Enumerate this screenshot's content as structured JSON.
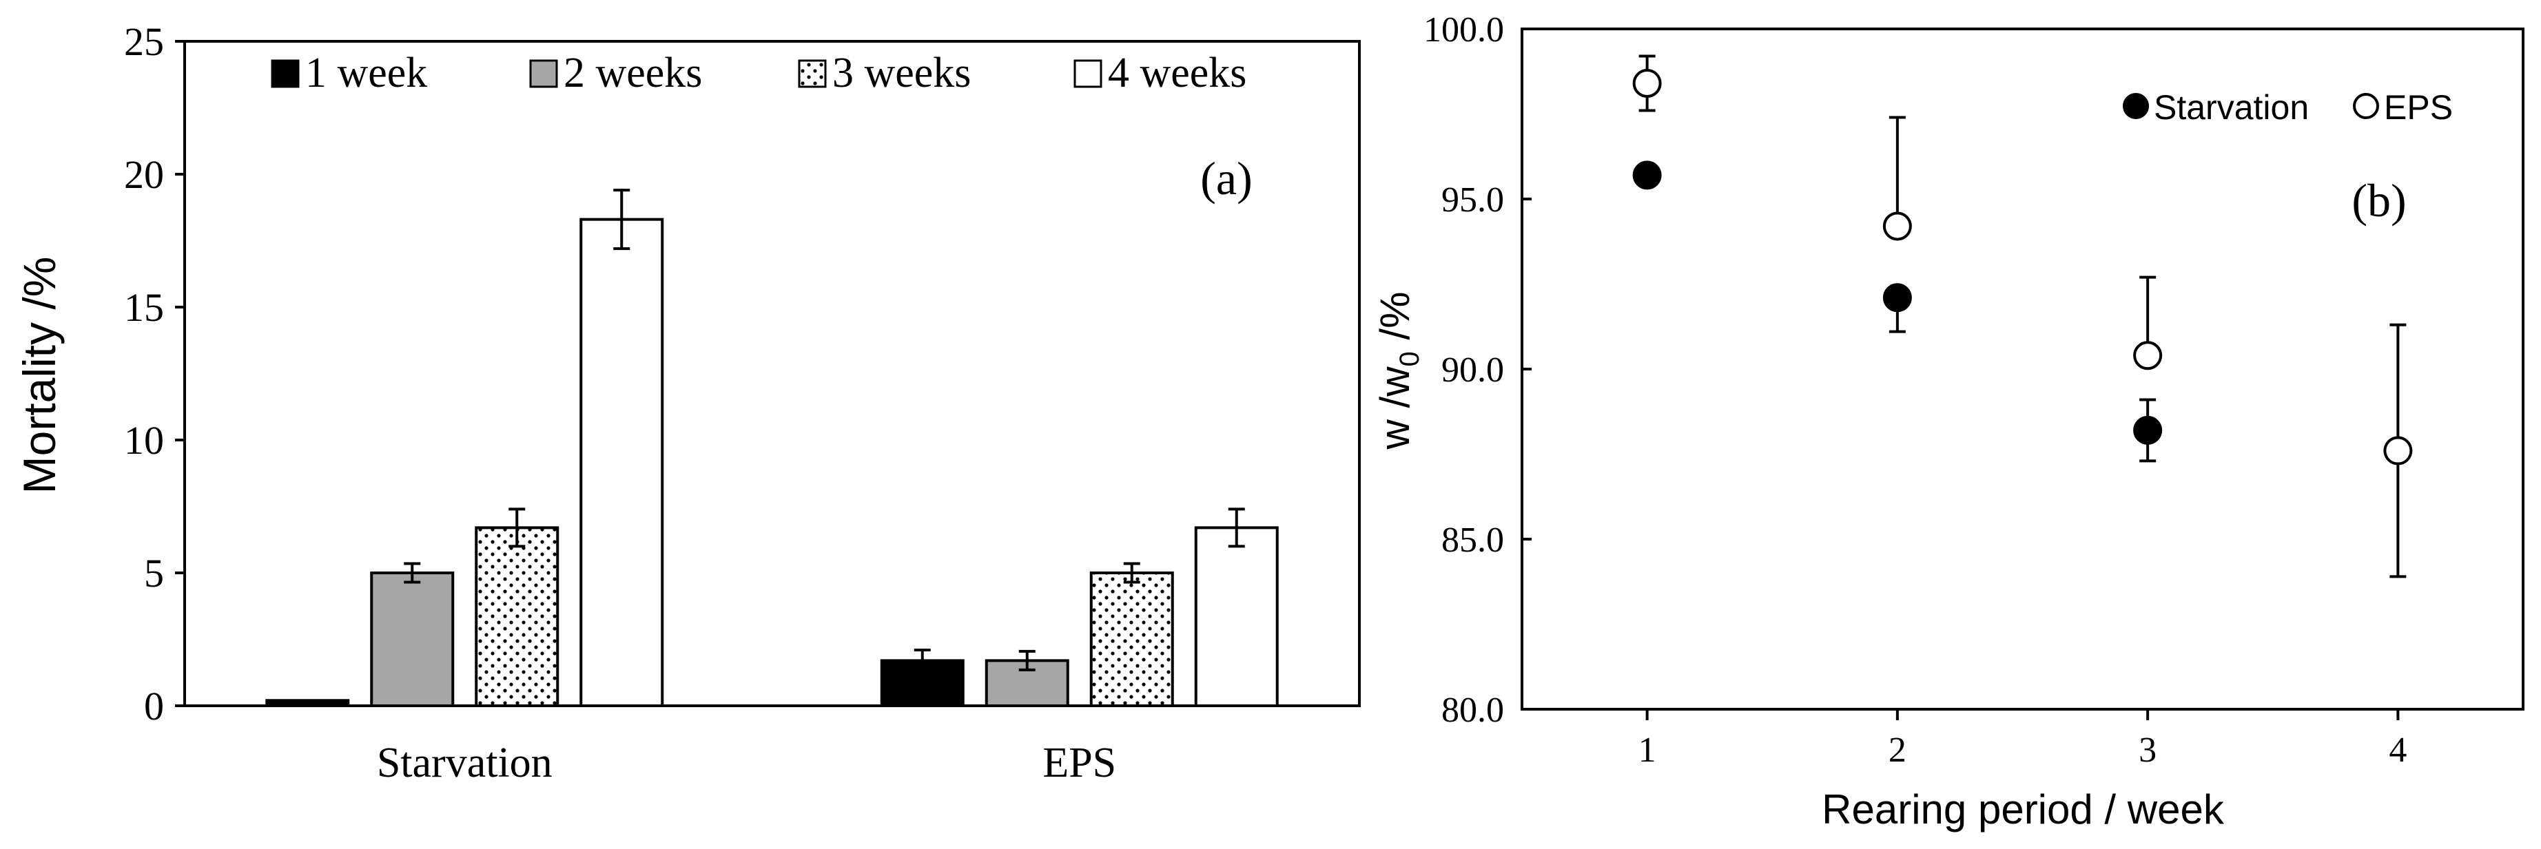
{
  "chart_data": [
    {
      "type": "bar",
      "panel_label": "(a)",
      "title": "",
      "xlabel": "",
      "ylabel": "Mortality /%",
      "ylim": [
        0,
        25
      ],
      "yticks": [
        0,
        5,
        10,
        15,
        20,
        25
      ],
      "categories": [
        "Starvation",
        "EPS"
      ],
      "series": [
        {
          "name": "1 week",
          "values": [
            0.2,
            1.7
          ],
          "errors": [
            0,
            0.4
          ],
          "fill": "#000000",
          "pattern": "solid"
        },
        {
          "name": "2 weeks",
          "values": [
            5.0,
            1.7
          ],
          "errors": [
            0.35,
            0.35
          ],
          "fill": "#a6a6a6",
          "pattern": "solid"
        },
        {
          "name": "3 weeks",
          "values": [
            6.7,
            5.0
          ],
          "errors": [
            0.7,
            0.35
          ],
          "fill": "#ffffff",
          "pattern": "dots"
        },
        {
          "name": "4 weeks",
          "values": [
            18.3,
            6.7
          ],
          "errors": [
            1.1,
            0.7
          ],
          "fill": "#ffffff",
          "pattern": "none"
        }
      ],
      "legend_position": "top",
      "grid": false
    },
    {
      "type": "scatter",
      "panel_label": "(b)",
      "title": "",
      "xlabel": "Rearing period / week",
      "ylabel_main": "w /w",
      "ylabel_sub": "0",
      "ylabel_tail": " /%",
      "xlim": [
        0.5,
        4.5
      ],
      "xticks": [
        "1",
        "2",
        "3",
        "4"
      ],
      "ylim": [
        80,
        100
      ],
      "yticks": [
        "80.0",
        "85.0",
        "90.0",
        "95.0",
        "100.0"
      ],
      "series": [
        {
          "name": "Starvation",
          "marker": "filled-circle",
          "x": [
            1,
            2,
            3
          ],
          "y": [
            95.7,
            92.1,
            88.2
          ],
          "err_up": [
            0,
            0,
            0.9
          ],
          "err_down": [
            0,
            1.0,
            0.9
          ]
        },
        {
          "name": "EPS",
          "marker": "open-circle",
          "x": [
            1,
            2,
            3,
            4
          ],
          "y": [
            98.4,
            94.2,
            90.4,
            87.6
          ],
          "err_up": [
            0.8,
            3.2,
            2.3,
            3.7
          ],
          "err_down": [
            0.8,
            0,
            0,
            3.7
          ]
        }
      ],
      "legend_position": "top-right",
      "grid": false
    }
  ]
}
